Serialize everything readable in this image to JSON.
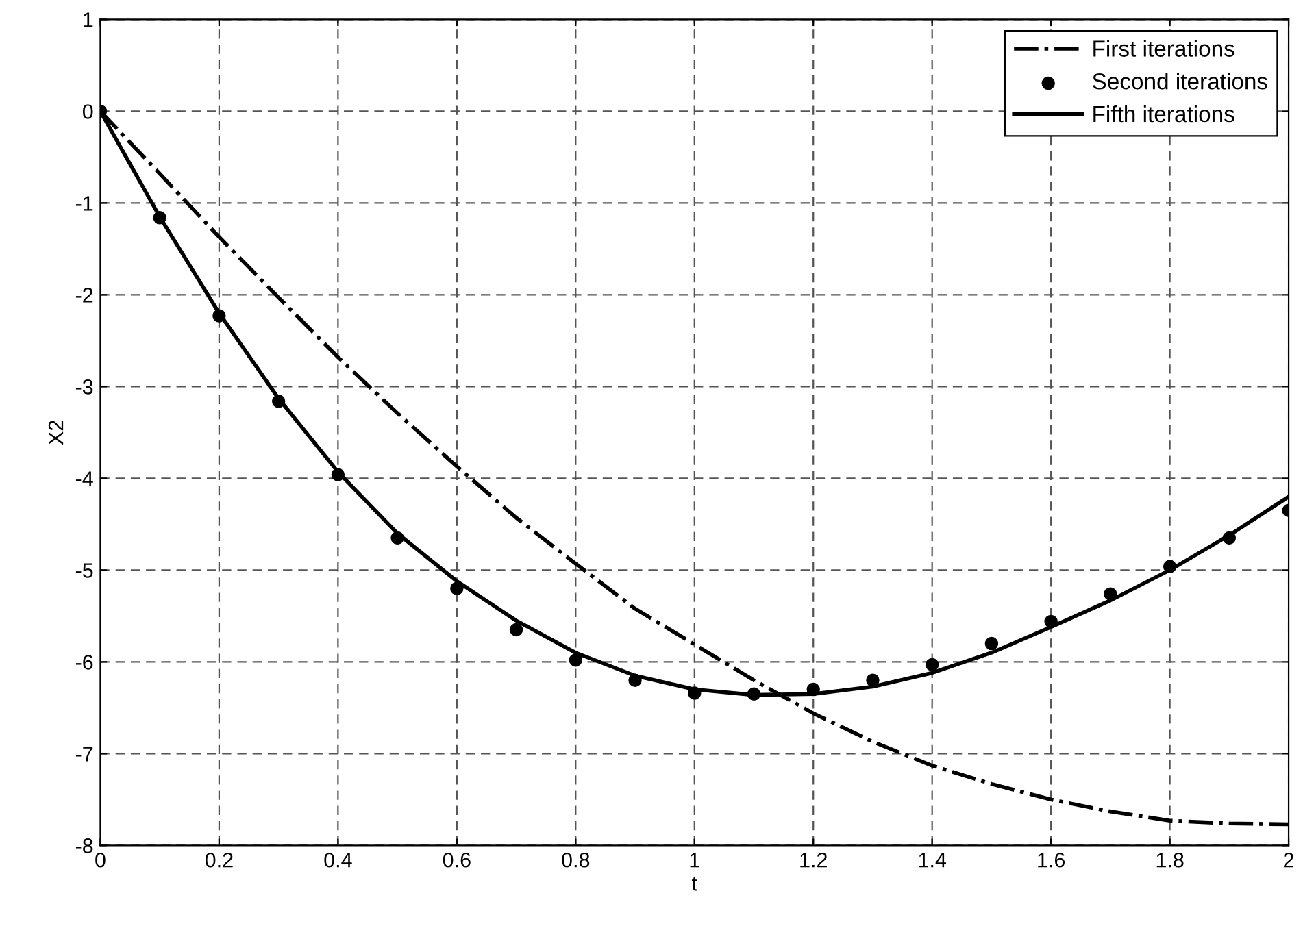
{
  "chart_data": {
    "type": "line",
    "xlabel": "t",
    "ylabel": "X2",
    "xlim": [
      0,
      2
    ],
    "ylim": [
      -8,
      1
    ],
    "xticks": [
      0,
      0.2,
      0.4,
      0.6,
      0.8,
      1,
      1.2,
      1.4,
      1.6,
      1.8,
      2
    ],
    "yticks": [
      -8,
      -7,
      -6,
      -5,
      -4,
      -3,
      -2,
      -1,
      0,
      1
    ],
    "grid": true,
    "legend": "top right",
    "x": [
      0,
      0.1,
      0.2,
      0.3,
      0.4,
      0.5,
      0.6,
      0.7,
      0.8,
      0.9,
      1.0,
      1.1,
      1.2,
      1.3,
      1.4,
      1.5,
      1.6,
      1.7,
      1.8,
      1.9,
      2.0
    ],
    "series": [
      {
        "name": "First iterations",
        "color": "#000000",
        "line_style": "dashdot",
        "values": [
          0,
          -0.68,
          -1.37,
          -2.03,
          -2.68,
          -3.29,
          -3.87,
          -4.43,
          -4.93,
          -5.42,
          -5.81,
          -6.2,
          -6.56,
          -6.87,
          -7.13,
          -7.33,
          -7.5,
          -7.63,
          -7.73,
          -7.76,
          -7.77
        ]
      },
      {
        "name": "Second iterations",
        "color": "#000000",
        "type": "scatter",
        "marker": "circle",
        "values": [
          0,
          -1.16,
          -2.23,
          -3.16,
          -3.96,
          -4.65,
          -5.2,
          -5.65,
          -5.98,
          -6.2,
          -6.34,
          -6.35,
          -6.3,
          -6.2,
          -6.03,
          -5.8,
          -5.56,
          -5.26,
          -4.96,
          -4.65,
          -4.35
        ]
      },
      {
        "name": "Fifth iterations",
        "color": "#000000",
        "line_style": "solid",
        "values": [
          0,
          -1.15,
          -2.2,
          -3.13,
          -3.93,
          -4.6,
          -5.12,
          -5.55,
          -5.9,
          -6.15,
          -6.3,
          -6.36,
          -6.35,
          -6.27,
          -6.12,
          -5.9,
          -5.62,
          -5.33,
          -5.0,
          -4.62,
          -4.2
        ]
      }
    ]
  }
}
